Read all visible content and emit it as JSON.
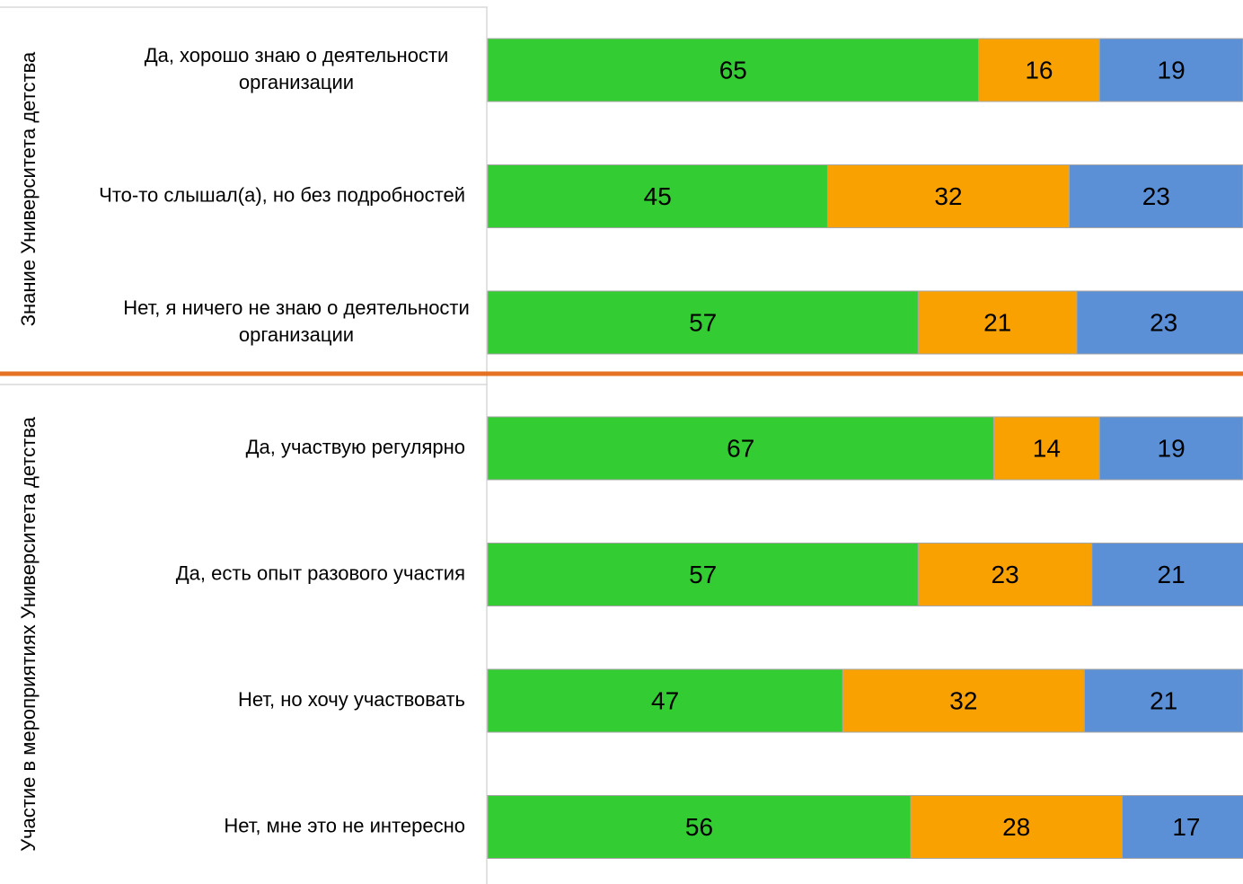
{
  "chart_data": {
    "type": "bar",
    "orientation": "horizontal",
    "stacked": true,
    "percent": true,
    "xlim": [
      0,
      100
    ],
    "grid": false,
    "legend": "none",
    "colors": [
      "#33cc33",
      "#f8a100",
      "#5b8fd6"
    ],
    "separator_color": "#e37222",
    "groups": [
      {
        "name": "Знание Университета детства",
        "categories": [
          "Да, хорошо знаю о деятельности организации",
          "Что-то слышал(а), но без подробностей",
          "Нет, я ничего не знаю о деятельности организации"
        ],
        "series": [
          {
            "values": [
              65,
              45,
              57
            ]
          },
          {
            "values": [
              16,
              32,
              21
            ]
          },
          {
            "values": [
              19,
              23,
              23
            ]
          }
        ]
      },
      {
        "name": "Участие в мероприятиях Университета детства",
        "categories": [
          "Да, участвую регулярно",
          "Да, есть опыт разового участия",
          "Нет, но хочу участвовать",
          "Нет, мне это не интересно"
        ],
        "series": [
          {
            "values": [
              67,
              57,
              47,
              56
            ]
          },
          {
            "values": [
              14,
              23,
              32,
              28
            ]
          },
          {
            "values": [
              19,
              21,
              21,
              17
            ]
          }
        ]
      }
    ]
  }
}
